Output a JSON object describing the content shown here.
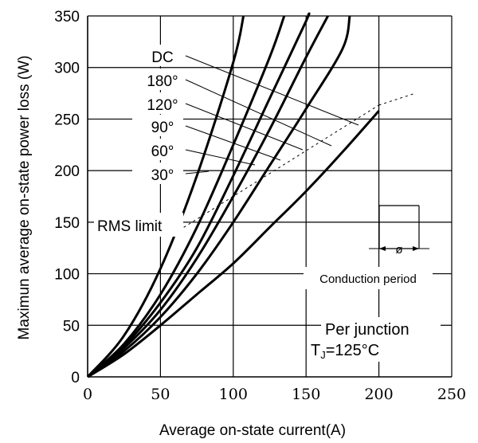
{
  "chart_data": {
    "type": "line",
    "xlabel": "Average on-state current(A)",
    "ylabel": "Maximun average on-state power loss (W)",
    "xlim": [
      0,
      250
    ],
    "ylim": [
      0,
      350
    ],
    "x_ticks": [
      "0",
      "50",
      "100",
      "150",
      "200",
      "250"
    ],
    "y_ticks": [
      "0",
      "50",
      "100",
      "150",
      "200",
      "250",
      "300",
      "350"
    ],
    "grid": true,
    "series": [
      {
        "name": "30°",
        "points": [
          [
            0,
            0
          ],
          [
            25,
            40
          ],
          [
            50,
            105
          ],
          [
            75,
            195
          ],
          [
            100,
            305
          ],
          [
            107,
            350
          ]
        ]
      },
      {
        "name": "60°",
        "points": [
          [
            0,
            0
          ],
          [
            25,
            32
          ],
          [
            50,
            80
          ],
          [
            75,
            145
          ],
          [
            100,
            225
          ],
          [
            125,
            310
          ],
          [
            135,
            350
          ]
        ]
      },
      {
        "name": "90°",
        "points": [
          [
            0,
            0
          ],
          [
            25,
            30
          ],
          [
            50,
            72
          ],
          [
            75,
            125
          ],
          [
            100,
            195
          ],
          [
            125,
            270
          ],
          [
            150,
            345
          ],
          [
            151,
            350
          ]
        ]
      },
      {
        "name": "120°",
        "points": [
          [
            0,
            0
          ],
          [
            25,
            28
          ],
          [
            50,
            65
          ],
          [
            75,
            115
          ],
          [
            100,
            175
          ],
          [
            125,
            240
          ],
          [
            150,
            310
          ],
          [
            165,
            350
          ]
        ]
      },
      {
        "name": "180°",
        "points": [
          [
            0,
            0
          ],
          [
            25,
            25
          ],
          [
            50,
            58
          ],
          [
            75,
            100
          ],
          [
            100,
            150
          ],
          [
            125,
            205
          ],
          [
            150,
            260
          ],
          [
            175,
            318
          ],
          [
            180,
            350
          ]
        ]
      },
      {
        "name": "DC",
        "points": [
          [
            0,
            0
          ],
          [
            25,
            22
          ],
          [
            50,
            50
          ],
          [
            75,
            80
          ],
          [
            100,
            110
          ],
          [
            125,
            145
          ],
          [
            150,
            180
          ],
          [
            175,
            218
          ],
          [
            200,
            258
          ]
        ]
      }
    ],
    "rms_limit_line": [
      [
        66,
        145
      ],
      [
        200,
        262
      ]
    ],
    "annotations": {
      "series_labels": [
        "DC",
        "180°",
        "120°",
        "90°",
        "60°",
        "30°"
      ],
      "rms_limit": "RMS limit",
      "conduction_period": "Conduction period",
      "phi_symbol": "ø",
      "per_junction": "Per junction",
      "tj": "T",
      "tj_sub": "J",
      "tj_value": "=125°C"
    }
  }
}
